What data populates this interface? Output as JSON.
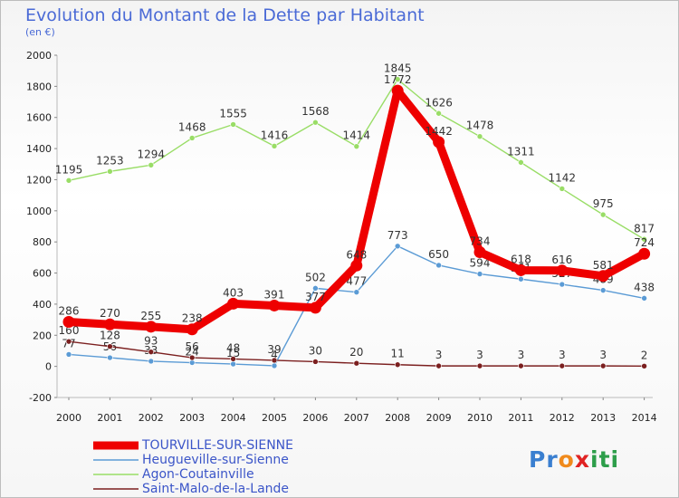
{
  "header": {
    "title": "Evolution du Montant de la Dette par Habitant",
    "subtitle": "(en €)"
  },
  "logo": {
    "text": "Proxiti",
    "letters": [
      "P",
      "r",
      "o",
      "x",
      "i",
      "t",
      "i"
    ],
    "colors": [
      "#3a7fd0",
      "#3a7fd0",
      "#f08a1c",
      "#e02323",
      "#2d9e4a",
      "#2d9e4a",
      "#2d9e4a"
    ]
  },
  "chart_data": {
    "type": "line",
    "title": "Evolution du Montant de la Dette par Habitant",
    "subtitle": "(en €)",
    "x": [
      "2000",
      "2001",
      "2002",
      "2003",
      "2004",
      "2005",
      "2006",
      "2007",
      "2008",
      "2009",
      "2010",
      "2011",
      "2012",
      "2013",
      "2014"
    ],
    "ylim": [
      -200,
      2000
    ],
    "yticks": [
      "-200",
      "0",
      "200",
      "400",
      "600",
      "800",
      "1000",
      "1200",
      "1400",
      "1600",
      "1800",
      "2000"
    ],
    "grid": false,
    "legend_position": "bottom-left",
    "series": [
      {
        "name": "Agon-Coutainville",
        "color": "#99dd66",
        "values": [
          1195,
          1253,
          1294,
          1468,
          1555,
          1416,
          1568,
          1414,
          1845,
          1626,
          1478,
          1311,
          1142,
          975,
          817
        ],
        "labels": [
          "1195",
          "1253",
          "1294",
          "1468",
          "1555",
          "1416",
          "1568",
          "1414",
          "1845",
          "1626",
          "1478",
          "1311",
          "1142",
          "975",
          "817"
        ]
      },
      {
        "name": "Heugueville-sur-Sienne",
        "color": "#5b9bd5",
        "values": [
          77,
          56,
          33,
          24,
          15,
          4,
          502,
          477,
          773,
          650,
          594,
          561,
          527,
          489,
          438
        ],
        "labels": [
          "77",
          "56",
          "33",
          "24",
          "15",
          "4",
          "502",
          "477",
          "773",
          "650",
          "594",
          "561",
          "527",
          "489",
          "438"
        ]
      },
      {
        "name": "Saint-Malo-de-la-Lande",
        "color": "#7b1f1f",
        "values": [
          160,
          128,
          93,
          56,
          48,
          39,
          30,
          20,
          11,
          3,
          3,
          3,
          3,
          3,
          2
        ],
        "labels": [
          "160",
          "128",
          "93",
          "56",
          "48",
          "39",
          "30",
          "20",
          "11",
          "3",
          "3",
          "3",
          "3",
          "3",
          "2"
        ]
      },
      {
        "name": "TOURVILLE-SUR-SIENNE",
        "color": "#ee0000",
        "values": [
          286,
          270,
          255,
          238,
          403,
          391,
          377,
          648,
          1772,
          1442,
          734,
          618,
          616,
          581,
          724
        ],
        "labels": [
          "286",
          "270",
          "255",
          "238",
          "403",
          "391",
          "377",
          "648",
          "1772",
          "1442",
          "734",
          "618",
          "616",
          "581",
          "724"
        ]
      }
    ],
    "legend": [
      "TOURVILLE-SUR-SIENNE",
      "Heugueville-sur-Sienne",
      "Agon-Coutainville",
      "Saint-Malo-de-la-Lande"
    ]
  }
}
